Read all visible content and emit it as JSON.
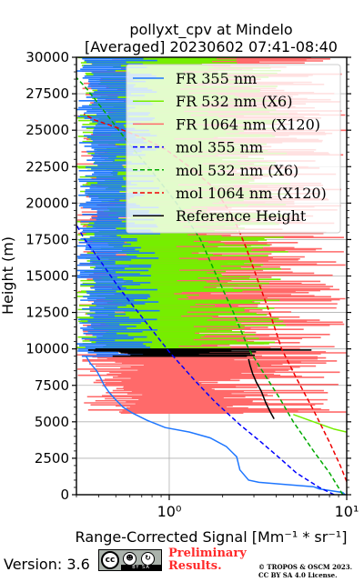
{
  "chart_data": {
    "type": "line",
    "title_line1": "pollyxt_cpv at Mindelo",
    "title_line2": "[Averaged] 20230602 07:41-08:40",
    "xlabel": "Range-Corrected Signal [Mm⁻¹ * sr⁻¹]",
    "ylabel": "Height (m)",
    "x_scale": "log",
    "xlim": [
      0.3,
      10
    ],
    "ylim": [
      0,
      30000
    ],
    "x_ticks": [
      {
        "value": 1,
        "label": "10⁰"
      },
      {
        "value": 10,
        "label": "10¹"
      }
    ],
    "y_ticks": [
      0,
      2500,
      5000,
      7500,
      10000,
      12500,
      15000,
      17500,
      20000,
      22500,
      25000,
      27500,
      30000
    ],
    "grid": true,
    "legend_position": "top-right",
    "series": [
      {
        "name": "FR 355 nm",
        "color": "#1f77ff",
        "style": "solid",
        "points": [
          [
            9.8,
            0
          ],
          [
            9.5,
            150
          ],
          [
            7,
            400
          ],
          [
            6.5,
            550
          ],
          [
            4.5,
            700
          ],
          [
            3.2,
            850
          ],
          [
            2.8,
            1000
          ],
          [
            2.5,
            1700
          ],
          [
            2.4,
            2600
          ],
          [
            2.1,
            3300
          ],
          [
            1.7,
            3900
          ],
          [
            1.3,
            4300
          ],
          [
            0.95,
            4600
          ],
          [
            0.75,
            5100
          ],
          [
            0.62,
            5600
          ],
          [
            0.55,
            6000
          ],
          [
            0.5,
            6500
          ],
          [
            0.46,
            7000
          ],
          [
            0.43,
            7500
          ],
          [
            0.41,
            8000
          ],
          [
            0.39,
            8500
          ],
          [
            0.36,
            9000
          ],
          [
            0.34,
            9500
          ]
        ]
      },
      {
        "name": "FR 532 nm (X6)",
        "color": "#76ee00",
        "style": "solid",
        "points": [
          [
            10,
            4300
          ],
          [
            8.5,
            4500
          ],
          [
            6.5,
            5000
          ],
          [
            5,
            5500
          ]
        ]
      },
      {
        "name": "FR 1064 nm (X120)",
        "color": "#ff6a6a",
        "style": "solid",
        "points": []
      },
      {
        "name": "mol 355 nm",
        "color": "#0000ff",
        "style": "dashed",
        "points": [
          [
            8.5,
            0
          ],
          [
            7,
            500
          ],
          [
            5.2,
            1500
          ],
          [
            4.2,
            2500
          ],
          [
            3.3,
            3600
          ],
          [
            2.5,
            4800
          ],
          [
            1.8,
            6400
          ],
          [
            1.4,
            7800
          ],
          [
            1.0,
            9800
          ],
          [
            0.72,
            12000
          ],
          [
            0.52,
            14200
          ],
          [
            0.4,
            16200
          ],
          [
            0.33,
            17600
          ],
          [
            0.3,
            18500
          ]
        ]
      },
      {
        "name": "mol 532 nm (X6)",
        "color": "#00aa00",
        "style": "dashed",
        "points": [
          [
            9.5,
            0
          ],
          [
            8,
            1500
          ],
          [
            6.5,
            3000
          ],
          [
            5,
            5000
          ],
          [
            4.2,
            6600
          ],
          [
            3.3,
            8600
          ],
          [
            2.8,
            10000
          ],
          [
            2.3,
            12500
          ],
          [
            1.85,
            15000
          ],
          [
            1.5,
            17500
          ],
          [
            1.1,
            20000
          ],
          [
            0.82,
            22000
          ],
          [
            0.6,
            24000
          ],
          [
            0.45,
            26000
          ],
          [
            0.34,
            27900
          ],
          [
            0.3,
            28600
          ]
        ]
      },
      {
        "name": "mol 1064 nm (X120)",
        "color": "#ee0000",
        "style": "dashed",
        "points": [
          [
            10,
            900
          ],
          [
            9.2,
            2000
          ],
          [
            8,
            3600
          ],
          [
            6.5,
            5800
          ],
          [
            5.2,
            8000
          ],
          [
            4.3,
            10000
          ],
          [
            3.8,
            12000
          ],
          [
            3.2,
            14500
          ],
          [
            2.7,
            17000
          ],
          [
            2.3,
            19000
          ],
          [
            1.8,
            21000
          ],
          [
            1.3,
            22500
          ],
          [
            0.95,
            23700
          ],
          [
            0.7,
            24500
          ],
          [
            0.5,
            25200
          ],
          [
            0.38,
            25700
          ],
          [
            0.33,
            26100
          ]
        ]
      },
      {
        "name": "Reference Height",
        "color": "#000000",
        "style": "solid",
        "points": [
          [
            3.9,
            5200
          ],
          [
            3.7,
            5700
          ],
          [
            3.5,
            6300
          ],
          [
            3.3,
            7100
          ],
          [
            3.1,
            7700
          ],
          [
            2.95,
            8300
          ],
          [
            2.85,
            8900
          ],
          [
            2.8,
            9300
          ]
        ]
      }
    ]
  },
  "footer": {
    "version": "Version: 3.6",
    "license_badge": "BY SA",
    "preliminary": "Preliminary Results.",
    "credit_line1": "© TROPOS & OSCM 2023.",
    "credit_line2": "CC BY SA 4.0 License."
  }
}
